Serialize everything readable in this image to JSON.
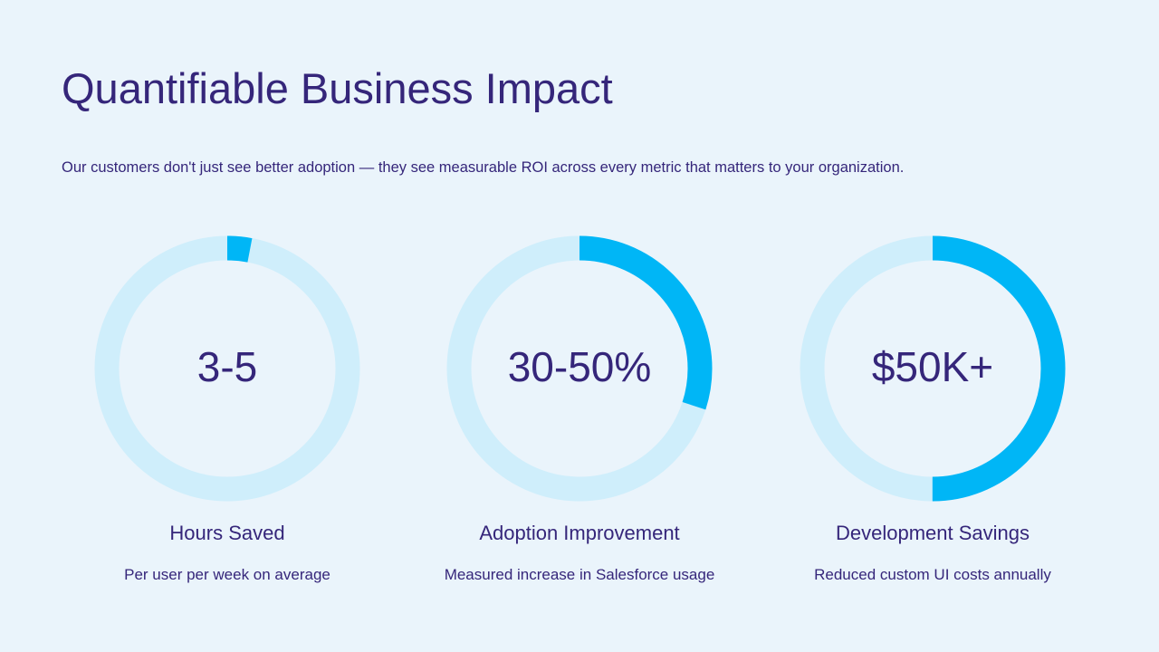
{
  "colors": {
    "background": "#eaf4fb",
    "text": "#35267a",
    "ring_track": "#cfeefb",
    "ring_progress": "#00b6f6"
  },
  "header": {
    "title": "Quantifiable Business Impact",
    "subtitle": "Our customers don't just see better adoption — they see measurable ROI across every metric that matters to your organization."
  },
  "metrics": [
    {
      "value": "3-5",
      "label": "Hours Saved",
      "description": "Per user per week on average",
      "progress": 0.03
    },
    {
      "value": "30-50%",
      "label": "Adoption Improvement",
      "description": "Measured increase in Salesforce usage",
      "progress": 0.3
    },
    {
      "value": "$50K+",
      "label": "Development Savings",
      "description": "Reduced custom UI costs annually",
      "progress": 0.5
    }
  ]
}
